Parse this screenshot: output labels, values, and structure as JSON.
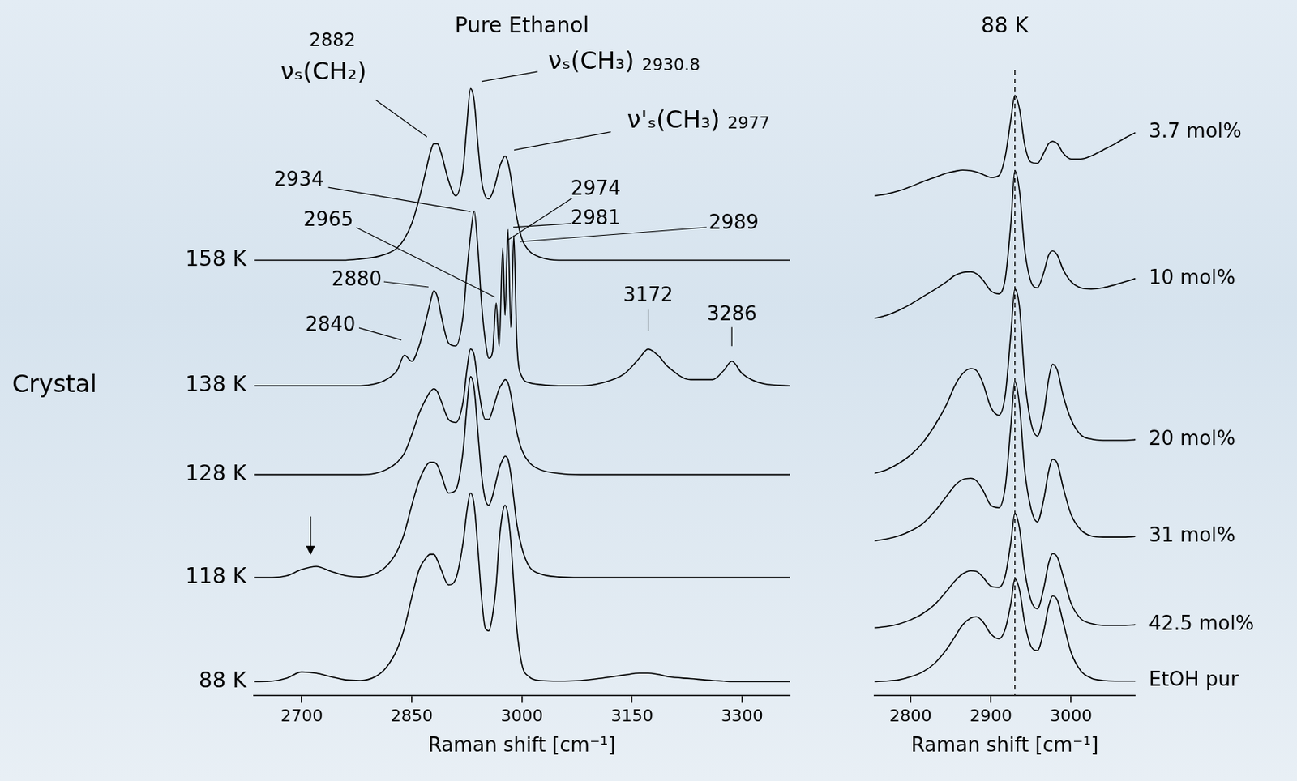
{
  "chart_data": [
    {
      "type": "line",
      "title": "Pure Ethanol",
      "x_label": "Raman shift [cm⁻¹]",
      "x": [
        2635,
        2660,
        2680,
        2700,
        2720,
        2740,
        2760,
        2780,
        2800,
        2815,
        2830,
        2840,
        2850,
        2860,
        2870,
        2875,
        2880,
        2885,
        2890,
        2900,
        2910,
        2920,
        2925,
        2930,
        2935,
        2940,
        2945,
        2950,
        2955,
        2960,
        2965,
        2969,
        2974,
        2977,
        2981,
        2985,
        2989,
        2993,
        3000,
        3010,
        3025,
        3050,
        3080,
        3110,
        3140,
        3160,
        3172,
        3185,
        3200,
        3230,
        3260,
        3275,
        3286,
        3300,
        3330,
        3365
      ],
      "series": [
        {
          "name": "158 K",
          "color": "#000000",
          "values": [
            71,
            71,
            71,
            71,
            71,
            71,
            71,
            71.2,
            71.5,
            72,
            73,
            74.5,
            77,
            81,
            86,
            88.5,
            90,
            90,
            88.5,
            84,
            81.5,
            86,
            93,
            99,
            97,
            90,
            84,
            81.5,
            81,
            82,
            84,
            86,
            87.5,
            88,
            87,
            84.5,
            81,
            78,
            74.5,
            72.5,
            71.5,
            71,
            71,
            71,
            71,
            71,
            71,
            71,
            71,
            71,
            71,
            71,
            71,
            71,
            71,
            71
          ]
        },
        {
          "name": "138 K",
          "color": "#000000",
          "values": [
            50.5,
            50.5,
            50.5,
            50.5,
            50.5,
            50.5,
            50.5,
            50.5,
            50.8,
            51.5,
            53,
            55.5,
            54.5,
            57,
            61.5,
            64,
            66,
            65,
            62,
            57.5,
            57,
            62,
            69,
            75,
            79,
            73,
            64,
            58,
            55,
            56,
            64,
            57,
            73,
            62,
            76,
            60,
            75,
            58,
            52,
            51,
            50.7,
            50.5,
            50.5,
            51,
            52.5,
            55,
            56.5,
            55.5,
            53.5,
            51.5,
            51.5,
            53,
            54.5,
            52.5,
            50.8,
            50.5
          ]
        },
        {
          "name": "128 K",
          "color": "#000000",
          "values": [
            36,
            36,
            36,
            36,
            36,
            36,
            36,
            36,
            36.2,
            36.8,
            38,
            39.5,
            42.5,
            46,
            48.5,
            49.5,
            50,
            49.5,
            48,
            45,
            44.5,
            48,
            53,
            56.5,
            55.5,
            51,
            47,
            45,
            45,
            46.5,
            48.5,
            50,
            51,
            51.5,
            51,
            49,
            46,
            43,
            40,
            38,
            36.8,
            36.2,
            36,
            36,
            36,
            36,
            36,
            36,
            36,
            36,
            36,
            36,
            36,
            36,
            36,
            36
          ]
        },
        {
          "name": "118 K",
          "color": "#000000",
          "values": [
            19.2,
            19.2,
            19.5,
            20.5,
            21,
            20.2,
            19.5,
            19.3,
            19.8,
            21,
            23.5,
            26.5,
            31,
            35,
            37.5,
            38,
            38,
            37.5,
            36,
            33,
            33.5,
            40,
            47,
            52,
            50,
            43,
            36,
            32,
            31,
            32.5,
            35,
            37,
            38.5,
            39,
            38.5,
            36,
            32,
            28,
            24,
            21,
            19.8,
            19.3,
            19.2,
            19.2,
            19.2,
            19.2,
            19.2,
            19.2,
            19.2,
            19.2,
            19.2,
            19.2,
            19.2,
            19.2,
            19.2,
            19.2
          ]
        },
        {
          "name": "88 K",
          "color": "#000000",
          "values": [
            2.2,
            2.3,
            2.8,
            3.8,
            3.6,
            3,
            2.5,
            2.4,
            3,
            4.5,
            7.5,
            11,
            16,
            20.5,
            22.5,
            23,
            23,
            22,
            20.5,
            18,
            19,
            25,
            30,
            33,
            31,
            24,
            16,
            11,
            10.5,
            13,
            18,
            25,
            30,
            31,
            29.5,
            25,
            18,
            11,
            5,
            3,
            2.4,
            2.3,
            2.4,
            2.8,
            3.3,
            3.6,
            3.6,
            3.4,
            3,
            2.7,
            2.4,
            2.3,
            2.2,
            2.2,
            2.2,
            2.2
          ]
        }
      ],
      "xlim": [
        2635,
        3365
      ],
      "xticks": [
        2700,
        2850,
        3000,
        3150,
        3300
      ],
      "ylim": [
        0,
        102
      ],
      "tick_labels": "x",
      "grid": false,
      "marker": "none",
      "line_style": "solid",
      "annotations": [
        {
          "text": "νₛ(CH₂)",
          "value": 2882,
          "series": "158 K"
        },
        {
          "text": "νₛ(CH₃)",
          "value": 2930.8,
          "series": "158 K"
        },
        {
          "text": "ν'ₛ(CH₃)",
          "value": 2977,
          "series": "158 K"
        },
        {
          "value": 2934,
          "series": "138 K"
        },
        {
          "value": 2974,
          "series": "138 K"
        },
        {
          "value": 2965,
          "series": "138 K"
        },
        {
          "value": 2981,
          "series": "138 K"
        },
        {
          "value": 2989,
          "series": "138 K"
        },
        {
          "value": 2880,
          "series": "138 K"
        },
        {
          "value": 2840,
          "series": "138 K"
        },
        {
          "value": 3172,
          "series": "138 K"
        },
        {
          "value": 3286,
          "series": "138 K"
        },
        {
          "marker": "arrow",
          "x": 2712,
          "series": "118 K"
        },
        {
          "text": "Crystal",
          "series": "138 K"
        }
      ]
    },
    {
      "type": "line",
      "title": "88 K",
      "x_label": "Raman shift [cm⁻¹]",
      "x": [
        2755,
        2770,
        2785,
        2800,
        2815,
        2830,
        2845,
        2855,
        2865,
        2875,
        2882,
        2890,
        2900,
        2910,
        2918,
        2925,
        2930,
        2936,
        2942,
        2950,
        2958,
        2966,
        2972,
        2977,
        2983,
        2990,
        3000,
        3012,
        3025,
        3040,
        3055,
        3068,
        3080
      ],
      "series": [
        {
          "name": "3.7 mol%",
          "color": "#000000",
          "values": [
            81.5,
            81.8,
            82.3,
            83,
            83.8,
            84.5,
            85.2,
            85.5,
            85.7,
            85.6,
            85.4,
            85,
            84.5,
            84.8,
            88,
            94,
            97.9,
            95.5,
            90,
            87,
            86.8,
            88.5,
            90,
            90.4,
            90,
            88.5,
            87.5,
            87.5,
            88,
            89,
            90,
            91,
            91.8
          ]
        },
        {
          "name": "10 mol%",
          "color": "#000000",
          "values": [
            61.5,
            62,
            62.8,
            63.8,
            65,
            66.2,
            67.5,
            68.5,
            69,
            69.1,
            68.8,
            67.8,
            66,
            65.5,
            68,
            77,
            85.6,
            82,
            73,
            67.5,
            66.5,
            69,
            71.8,
            72.5,
            71.8,
            69.5,
            67.5,
            66.5,
            66.3,
            66.5,
            67,
            67.5,
            68
          ]
        },
        {
          "name": "20 mol%",
          "color": "#000000",
          "values": [
            36.2,
            36.8,
            37.8,
            39.2,
            41.2,
            44,
            47.5,
            50.5,
            52.5,
            53.3,
            53,
            51,
            47,
            45.7,
            49,
            59,
            66.3,
            63,
            52,
            44.5,
            42.3,
            46,
            51.5,
            54,
            53,
            49,
            45,
            42.5,
            41.8,
            41.6,
            41.6,
            41.6,
            41.7
          ]
        },
        {
          "name": "31 mol%",
          "color": "#000000",
          "values": [
            25.2,
            25.5,
            26,
            26.8,
            28,
            30,
            32.5,
            34.2,
            35.2,
            35.4,
            35,
            33.5,
            31,
            30.6,
            34,
            44,
            51.2,
            47,
            37,
            30.5,
            28.3,
            32,
            36.5,
            38.5,
            37.8,
            34,
            29.5,
            27,
            26,
            25.8,
            25.8,
            25.8,
            25.9
          ]
        },
        {
          "name": "42.5 mol%",
          "color": "#000000",
          "values": [
            11,
            11.2,
            11.6,
            12.3,
            13.3,
            14.8,
            17,
            18.6,
            19.8,
            20.3,
            20.2,
            19.3,
            17.8,
            17.6,
            19.5,
            25,
            29.7,
            27,
            20.5,
            15.5,
            14.1,
            17.5,
            21.5,
            23.1,
            22.5,
            19.5,
            15,
            12.5,
            11.7,
            11.4,
            11.4,
            11.4,
            11.5
          ]
        },
        {
          "name": "EtOH pur",
          "color": "#000000",
          "values": [
            2.2,
            2.3,
            2.5,
            3,
            3.8,
            5.2,
            7.5,
            9.5,
            11.5,
            12.6,
            12.8,
            12,
            10,
            9.2,
            10.8,
            15,
            19,
            17,
            12,
            8,
            7.3,
            10.5,
            14.5,
            16.2,
            15.5,
            12,
            7,
            4,
            2.8,
            2.4,
            2.3,
            2.3,
            2.3
          ]
        }
      ],
      "xlim": [
        2755,
        3080
      ],
      "xticks": [
        2800,
        2900,
        3000
      ],
      "ylim": [
        0,
        102
      ],
      "tick_labels": "x",
      "grid": false,
      "marker": "none",
      "line_style": "solid",
      "annotations": [
        {
          "x": 2930,
          "line_style": "dashed"
        }
      ]
    }
  ]
}
